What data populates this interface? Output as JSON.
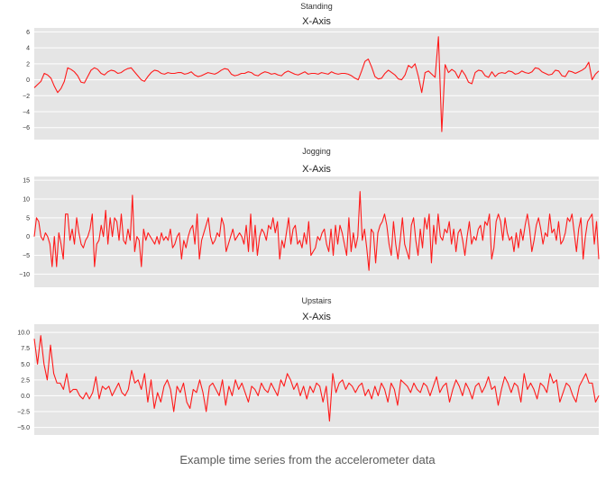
{
  "caption": "Example time series from the accelerometer data",
  "style": {
    "panel_background": "#e5e5e5",
    "grid_color": "#ffffff",
    "line_color": "#ff1a1a",
    "text_color": "#333333"
  },
  "chart_data": [
    {
      "type": "line",
      "suptitle": "Standing",
      "title": "X-Axis",
      "ylim": [
        -7.5,
        6.5
      ],
      "yticks": [
        6,
        4,
        2,
        0,
        -2,
        -4,
        -6
      ],
      "ytick_labels": [
        "6",
        "4",
        "2",
        "0",
        "−2",
        "−4",
        "−6"
      ],
      "grid": true,
      "series": [
        {
          "values": [
            -1.0,
            -0.6,
            -0.2,
            0.8,
            0.6,
            0.2,
            -0.8,
            -1.6,
            -1.1,
            -0.2,
            1.5,
            1.3,
            1.0,
            0.5,
            -0.3,
            -0.4,
            0.4,
            1.2,
            1.5,
            1.3,
            0.8,
            0.6,
            1.0,
            1.2,
            1.1,
            0.8,
            0.9,
            1.2,
            1.4,
            1.5,
            1.0,
            0.5,
            0.0,
            -0.2,
            0.4,
            0.9,
            1.2,
            1.1,
            0.8,
            0.7,
            0.9,
            0.8,
            0.8,
            0.9,
            0.9,
            0.7,
            0.8,
            1.0,
            0.6,
            0.4,
            0.5,
            0.7,
            0.9,
            0.8,
            0.7,
            0.9,
            1.2,
            1.4,
            1.3,
            0.7,
            0.5,
            0.6,
            0.8,
            0.8,
            1.0,
            0.9,
            0.6,
            0.5,
            0.8,
            1.0,
            0.9,
            0.7,
            0.8,
            0.6,
            0.5,
            0.9,
            1.1,
            0.9,
            0.7,
            0.6,
            0.8,
            1.0,
            0.7,
            0.8,
            0.8,
            0.7,
            0.9,
            0.8,
            0.7,
            1.0,
            0.8,
            0.7,
            0.8,
            0.8,
            0.7,
            0.5,
            0.2,
            0.0,
            1.1,
            2.3,
            2.6,
            1.6,
            0.4,
            0.1,
            0.2,
            0.8,
            1.2,
            0.9,
            0.6,
            0.1,
            0.0,
            0.6,
            1.8,
            1.5,
            2.0,
            0.4,
            -1.6,
            0.9,
            1.1,
            0.7,
            0.3,
            5.4,
            -6.5,
            1.9,
            0.9,
            1.3,
            1.0,
            0.2,
            1.2,
            0.6,
            -0.3,
            -0.5,
            0.9,
            1.2,
            1.1,
            0.5,
            0.3,
            1.0,
            0.4,
            0.8,
            0.9,
            0.8,
            1.1,
            1.0,
            0.7,
            0.8,
            1.1,
            0.9,
            0.8,
            1.0,
            1.5,
            1.4,
            1.0,
            0.8,
            0.6,
            0.7,
            1.2,
            1.1,
            0.5,
            0.4,
            1.1,
            1.0,
            0.8,
            1.0,
            1.2,
            1.5,
            2.2,
            0.0,
            0.7,
            1.1
          ]
        }
      ]
    },
    {
      "type": "line",
      "suptitle": "Jogging",
      "title": "X-Axis",
      "ylim": [
        -13.5,
        16
      ],
      "yticks": [
        15,
        10,
        5,
        0,
        -5,
        -10
      ],
      "ytick_labels": [
        "15",
        "10",
        "5",
        "0",
        "−5",
        "−10"
      ],
      "grid": true,
      "series": [
        {
          "values": [
            0,
            5,
            4,
            0,
            -1,
            1,
            0,
            -2,
            -8,
            0,
            -8,
            1,
            -2,
            -6,
            6,
            6,
            -1,
            2,
            -2,
            5,
            1,
            -2,
            -3,
            -1,
            0,
            2,
            6,
            -8,
            -2,
            -1,
            3,
            0,
            7,
            -2,
            5,
            0,
            5,
            4,
            -1,
            6,
            -1,
            -2,
            2,
            -1,
            11,
            -4,
            0,
            -1,
            -8,
            2,
            -1,
            1,
            0,
            -1,
            -2,
            0,
            -2,
            1,
            -1,
            0,
            -1,
            2,
            -3,
            -2,
            0,
            1,
            -6,
            -1,
            -3,
            0,
            2,
            3,
            -2,
            6,
            -6,
            -1,
            1,
            3,
            5,
            0,
            -2,
            -1,
            1,
            0,
            5,
            3,
            -4,
            -2,
            0,
            2,
            -1,
            0,
            1,
            0,
            -2,
            3,
            -4,
            6,
            -4,
            3,
            -5,
            0,
            2,
            1,
            -1,
            3,
            2,
            5,
            1,
            4,
            -6,
            -1,
            -3,
            1,
            5,
            -2,
            2,
            3,
            -2,
            -1,
            -3,
            1,
            -2,
            4,
            -5,
            -4,
            -3,
            0,
            -1,
            1,
            2,
            -2,
            -4,
            2,
            -5,
            3,
            -2,
            3,
            1,
            -2,
            -5,
            5,
            -4,
            1,
            -3,
            0,
            12,
            -1,
            2,
            -3,
            -9,
            2,
            1,
            -7,
            1,
            3,
            4,
            6,
            3,
            -2,
            -5,
            4,
            -2,
            -6,
            -1,
            5,
            -2,
            -4,
            -6,
            3,
            5,
            -1,
            -5,
            2,
            -3,
            5,
            2,
            6,
            -7,
            3,
            -2,
            6,
            0,
            -1,
            2,
            1,
            4,
            -2,
            2,
            -4,
            1,
            2,
            -1,
            -5,
            0,
            4,
            -2,
            0,
            -1,
            2,
            3,
            -1,
            4,
            3,
            6,
            -6,
            -3,
            4,
            6,
            4,
            -1,
            5,
            1,
            -1,
            0,
            -4,
            1,
            -3,
            2,
            -1,
            3,
            6,
            2,
            -4,
            -1,
            3,
            5,
            2,
            -2,
            1,
            0,
            6,
            1,
            2,
            -1,
            4,
            -2,
            -1,
            1,
            5,
            4,
            6,
            1,
            -4,
            2,
            5,
            -6,
            0,
            4,
            5,
            6,
            -2,
            4,
            -6
          ]
        }
      ]
    },
    {
      "type": "line",
      "suptitle": "Upstairs",
      "title": "X-Axis",
      "ylim": [
        -6.2,
        11.3
      ],
      "yticks": [
        10.0,
        7.5,
        5.0,
        2.5,
        0.0,
        -2.5,
        -5.0
      ],
      "ytick_labels": [
        "10.0",
        "7.5",
        "5.0",
        "2.5",
        "0.0",
        "−2.5",
        "−5.0"
      ],
      "grid": true,
      "series": [
        {
          "values": [
            9.0,
            5.0,
            9.5,
            5.0,
            2.5,
            8.0,
            3.5,
            2.0,
            2.0,
            1.0,
            3.5,
            0.5,
            1.0,
            1.0,
            0.0,
            -0.5,
            0.5,
            -0.5,
            0.5,
            3.0,
            -0.5,
            1.5,
            1.0,
            1.5,
            0.0,
            1.0,
            2.0,
            0.5,
            0.0,
            1.0,
            4.0,
            2.0,
            2.5,
            1.0,
            3.5,
            -1.0,
            2.5,
            -2.0,
            0.5,
            -1.0,
            1.5,
            2.5,
            1.0,
            -2.5,
            1.5,
            0.5,
            2.0,
            -1.0,
            -2.0,
            1.0,
            0.5,
            2.5,
            0.5,
            -2.5,
            1.5,
            2.0,
            1.0,
            0.0,
            2.5,
            -1.5,
            1.5,
            0.0,
            2.5,
            1.0,
            2.0,
            0.5,
            -1.0,
            1.5,
            1.0,
            0.0,
            2.0,
            1.0,
            0.5,
            2.0,
            1.0,
            0.0,
            2.5,
            1.5,
            3.5,
            2.5,
            1.0,
            2.0,
            0.0,
            1.5,
            -0.5,
            1.5,
            0.5,
            2.0,
            1.5,
            -1.0,
            1.5,
            -4.0,
            3.5,
            0.5,
            2.0,
            2.5,
            1.0,
            2.0,
            1.5,
            0.5,
            1.5,
            2.0,
            0.0,
            1.0,
            -0.5,
            1.5,
            0.0,
            2.0,
            1.0,
            -1.0,
            2.0,
            1.0,
            -1.5,
            2.5,
            2.0,
            1.5,
            0.5,
            2.0,
            1.0,
            0.5,
            2.0,
            1.5,
            0.0,
            1.5,
            3.0,
            0.5,
            1.5,
            2.0,
            -1.0,
            1.0,
            2.5,
            1.5,
            0.0,
            2.0,
            1.0,
            -0.5,
            1.5,
            2.0,
            0.5,
            1.5,
            3.0,
            1.0,
            1.5,
            -1.5,
            1.0,
            3.0,
            2.0,
            0.5,
            2.0,
            1.5,
            -1.0,
            3.5,
            1.0,
            2.0,
            1.0,
            -0.5,
            2.0,
            1.5,
            0.5,
            3.5,
            2.0,
            2.5,
            -1.0,
            0.5,
            2.0,
            1.5,
            0.0,
            -1.0,
            1.5,
            2.5,
            3.5,
            2.0,
            2.0,
            -1.0,
            0.0
          ]
        }
      ]
    }
  ]
}
